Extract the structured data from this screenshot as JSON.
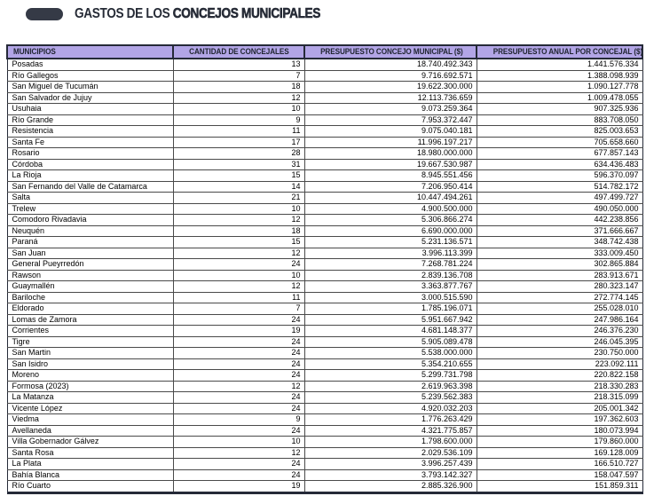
{
  "title": {
    "prefix": "GASTOS DE LOS ",
    "emphasis": "CONCEJOS MUNICIPALES"
  },
  "colors": {
    "header_bg": "#b2a5e6",
    "header_text": "#1f2430",
    "outer_border": "#252a38",
    "row_line": "#4a4a4a",
    "title_text": "#262b36",
    "pill_icon": "#353a46",
    "page_bg": "#ffffff"
  },
  "table": {
    "columns": [
      "MUNICIPIOS",
      "CANTIDAD DE CONCEJALES",
      "PRESUPUESTO CONCEJO MUNICIPAL ($)",
      "PRESUPUESTO ANUAL POR CONCEJAL ($)"
    ],
    "rows": [
      {
        "municipio": "Posadas",
        "concejales": "13",
        "presupuesto": "18.740.492.343",
        "anual": "1.441.576.334"
      },
      {
        "municipio": "Río Gallegos",
        "concejales": "7",
        "presupuesto": "9.716.692.571",
        "anual": "1.388.098.939"
      },
      {
        "municipio": "San Miguel de Tucumán",
        "concejales": "18",
        "presupuesto": "19.622.300.000",
        "anual": "1.090.127.778"
      },
      {
        "municipio": "San Salvador de Jujuy",
        "concejales": "12",
        "presupuesto": "12.113.736.659",
        "anual": "1.009.478.055"
      },
      {
        "municipio": "Usuhaia",
        "concejales": "10",
        "presupuesto": "9.073.259.364",
        "anual": "907.325.936"
      },
      {
        "municipio": "Río Grande",
        "concejales": "9",
        "presupuesto": "7.953.372.447",
        "anual": "883.708.050"
      },
      {
        "municipio": "Resistencia",
        "concejales": "11",
        "presupuesto": "9.075.040.181",
        "anual": "825.003.653"
      },
      {
        "municipio": "Santa Fe",
        "concejales": "17",
        "presupuesto": "11.996.197.217",
        "anual": "705.658.660"
      },
      {
        "municipio": "Rosario",
        "concejales": "28",
        "presupuesto": "18.980.000.000",
        "anual": "677.857.143"
      },
      {
        "municipio": "Córdoba",
        "concejales": "31",
        "presupuesto": "19.667.530.987",
        "anual": "634.436.483"
      },
      {
        "municipio": "La Rioja",
        "concejales": "15",
        "presupuesto": "8.945.551.456",
        "anual": "596.370.097"
      },
      {
        "municipio": "San Fernando del Valle de Catamarca",
        "concejales": "14",
        "presupuesto": "7.206.950.414",
        "anual": "514.782.172"
      },
      {
        "municipio": "Salta",
        "concejales": "21",
        "presupuesto": "10.447.494.261",
        "anual": "497.499.727"
      },
      {
        "municipio": "Trelew",
        "concejales": "10",
        "presupuesto": "4.900.500.000",
        "anual": "490.050.000"
      },
      {
        "municipio": "Comodoro Rivadavia",
        "concejales": "12",
        "presupuesto": "5.306.866.274",
        "anual": "442.238.856"
      },
      {
        "municipio": "Neuquén",
        "concejales": "18",
        "presupuesto": "6.690.000.000",
        "anual": "371.666.667"
      },
      {
        "municipio": "Paraná",
        "concejales": "15",
        "presupuesto": "5.231.136.571",
        "anual": "348.742.438"
      },
      {
        "municipio": "San Juan",
        "concejales": "12",
        "presupuesto": "3.996.113.399",
        "anual": "333.009.450"
      },
      {
        "municipio": "General Pueyrredón",
        "concejales": "24",
        "presupuesto": "7.268.781.224",
        "anual": "302.865.884"
      },
      {
        "municipio": "Rawson",
        "concejales": "10",
        "presupuesto": "2.839.136.708",
        "anual": "283.913.671"
      },
      {
        "municipio": "Guaymallén",
        "concejales": "12",
        "presupuesto": "3.363.877.767",
        "anual": "280.323.147"
      },
      {
        "municipio": "Bariloche",
        "concejales": "11",
        "presupuesto": "3.000.515.590",
        "anual": "272.774.145"
      },
      {
        "municipio": "Eldorado",
        "concejales": "7",
        "presupuesto": "1.785.196.071",
        "anual": "255.028.010"
      },
      {
        "municipio": "Lomas de Zamora",
        "concejales": "24",
        "presupuesto": "5.951.667.942",
        "anual": "247.986.164"
      },
      {
        "municipio": "Corrientes",
        "concejales": "19",
        "presupuesto": "4.681.148.377",
        "anual": "246.376.230"
      },
      {
        "municipio": "Tigre",
        "concejales": "24",
        "presupuesto": "5.905.089.478",
        "anual": "246.045.395"
      },
      {
        "municipio": "San Martin",
        "concejales": "24",
        "presupuesto": "5.538.000.000",
        "anual": "230.750.000"
      },
      {
        "municipio": "San Isidro",
        "concejales": "24",
        "presupuesto": "5.354.210.655",
        "anual": "223.092.111"
      },
      {
        "municipio": "Moreno",
        "concejales": "24",
        "presupuesto": "5.299.731.798",
        "anual": "220.822.158"
      },
      {
        "municipio": "Formosa (2023)",
        "concejales": "12",
        "presupuesto": "2.619.963.398",
        "anual": "218.330.283"
      },
      {
        "municipio": "La Matanza",
        "concejales": "24",
        "presupuesto": "5.239.562.383",
        "anual": "218.315.099"
      },
      {
        "municipio": "Vicente López",
        "concejales": "24",
        "presupuesto": "4.920.032.203",
        "anual": "205.001.342"
      },
      {
        "municipio": "Viedma",
        "concejales": "9",
        "presupuesto": "1.776.263.429",
        "anual": "197.362.603"
      },
      {
        "municipio": "Avellaneda",
        "concejales": "24",
        "presupuesto": "4.321.775.857",
        "anual": "180.073.994"
      },
      {
        "municipio": "Villa Gobernador Gálvez",
        "concejales": "10",
        "presupuesto": "1.798.600.000",
        "anual": "179.860.000"
      },
      {
        "municipio": "Santa Rosa",
        "concejales": "12",
        "presupuesto": "2.029.536.109",
        "anual": "169.128.009"
      },
      {
        "municipio": "La Plata",
        "concejales": "24",
        "presupuesto": "3.996.257.439",
        "anual": "166.510.727"
      },
      {
        "municipio": "Bahía Blanca",
        "concejales": "24",
        "presupuesto": "3.793.142.327",
        "anual": "158.047.597"
      },
      {
        "municipio": "Río Cuarto",
        "concejales": "19",
        "presupuesto": "2.885.326.900",
        "anual": "151.859.311"
      }
    ]
  }
}
